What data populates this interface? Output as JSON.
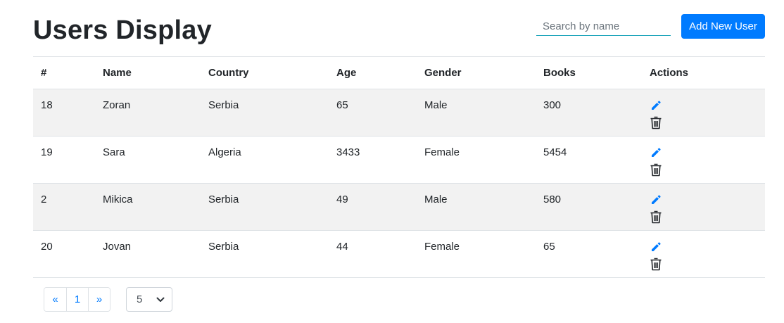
{
  "header": {
    "title": "Users Display",
    "search_placeholder": "Search by name",
    "add_button": "Add New User"
  },
  "table": {
    "columns": [
      "#",
      "Name",
      "Country",
      "Age",
      "Gender",
      "Books",
      "Actions"
    ],
    "rows": [
      {
        "id": "18",
        "name": "Zoran",
        "country": "Serbia",
        "age": "65",
        "gender": "Male",
        "books": "300"
      },
      {
        "id": "19",
        "name": "Sara",
        "country": "Algeria",
        "age": "3433",
        "gender": "Female",
        "books": "5454"
      },
      {
        "id": "2",
        "name": "Mikica",
        "country": "Serbia",
        "age": "49",
        "gender": "Male",
        "books": "580"
      },
      {
        "id": "20",
        "name": "Jovan",
        "country": "Serbia",
        "age": "44",
        "gender": "Female",
        "books": "65"
      }
    ],
    "row_actions": {
      "edit_icon": "pencil-icon",
      "delete_icon": "trash-icon"
    }
  },
  "pagination": {
    "prev": "«",
    "pages": [
      "1"
    ],
    "next": "»",
    "page_size": "5"
  },
  "colors": {
    "primary": "#007bff",
    "search_underline": "#17a2b8",
    "stripe": "#f2f2f2"
  }
}
